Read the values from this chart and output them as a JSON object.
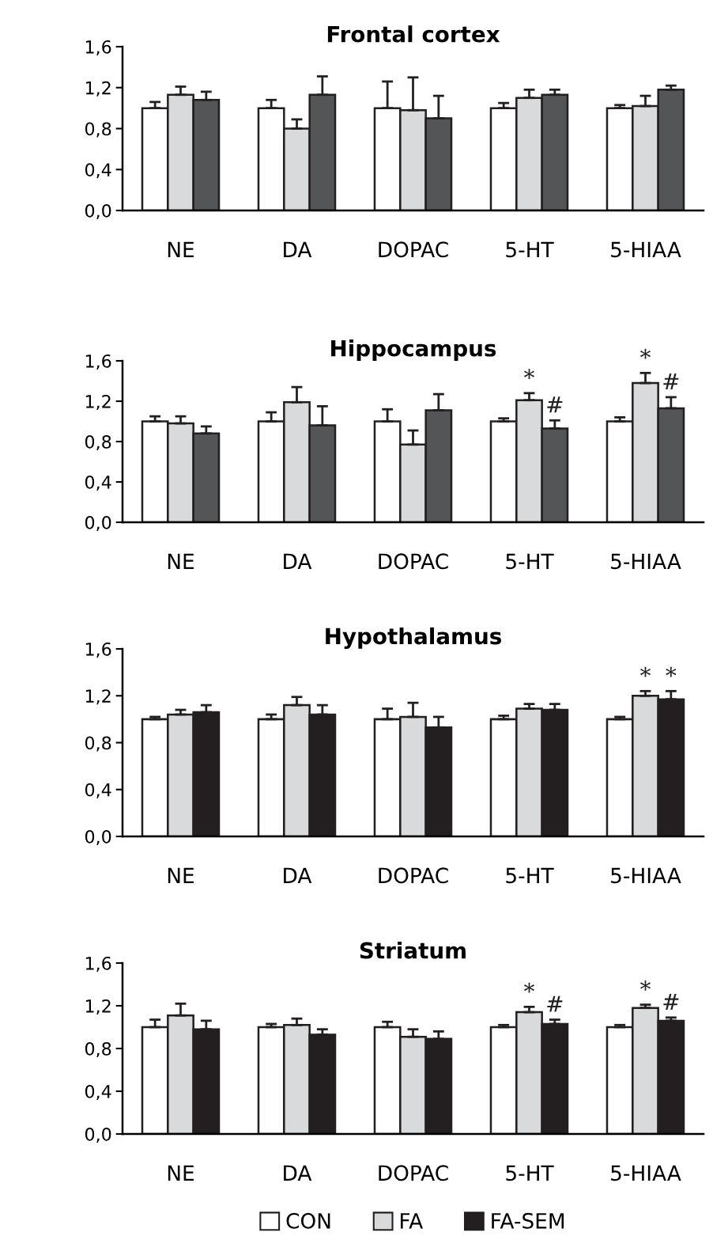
{
  "chart_data": [
    {
      "type": "bar",
      "title": "Frontal cortex",
      "categories": [
        "NE",
        "DA",
        "DOPAC",
        "5-HT",
        "5-HIAA"
      ],
      "ylim": [
        0,
        1.6
      ],
      "yticks": [
        {
          "value": 0,
          "label": "0,0"
        },
        {
          "value": 0.4,
          "label": "0,4"
        },
        {
          "value": 0.8,
          "label": "0,8"
        },
        {
          "value": 1.2,
          "label": "1,2"
        },
        {
          "value": 1.6,
          "label": "1,6"
        }
      ],
      "grid": false,
      "series": [
        {
          "color": "#ffffff",
          "values": [
            1.0,
            1.0,
            1.0,
            1.0,
            1.0
          ],
          "errors": [
            0.06,
            0.08,
            0.26,
            0.05,
            0.03
          ]
        },
        {
          "color": "#d9dadc",
          "values": [
            1.13,
            0.8,
            0.98,
            1.1,
            1.02
          ],
          "errors": [
            0.08,
            0.09,
            0.32,
            0.08,
            0.1
          ]
        },
        {
          "color": "#545556",
          "values": [
            1.08,
            1.13,
            0.9,
            1.13,
            1.18
          ],
          "errors": [
            0.08,
            0.18,
            0.22,
            0.05,
            0.04
          ]
        }
      ]
    },
    {
      "type": "bar",
      "title": "Hippocampus",
      "categories": [
        "NE",
        "DA",
        "DOPAC",
        "5-HT",
        "5-HIAA"
      ],
      "ylim": [
        0,
        1.6
      ],
      "yticks": [
        {
          "value": 0,
          "label": "0,0"
        },
        {
          "value": 0.4,
          "label": "0,4"
        },
        {
          "value": 0.8,
          "label": "0,8"
        },
        {
          "value": 1.2,
          "label": "1,2"
        },
        {
          "value": 1.6,
          "label": "1,6"
        }
      ],
      "grid": false,
      "series": [
        {
          "color": "#ffffff",
          "values": [
            1.0,
            1.0,
            1.0,
            1.0,
            1.0
          ],
          "errors": [
            0.05,
            0.09,
            0.12,
            0.03,
            0.04
          ]
        },
        {
          "color": "#d9dadc",
          "values": [
            0.98,
            1.19,
            0.77,
            1.21,
            1.38
          ],
          "errors": [
            0.07,
            0.15,
            0.14,
            0.07,
            0.1
          ]
        },
        {
          "color": "#545556",
          "values": [
            0.88,
            0.96,
            1.11,
            0.93,
            1.13
          ],
          "errors": [
            0.07,
            0.19,
            0.16,
            0.08,
            0.11
          ]
        }
      ],
      "annotations": [
        {
          "text": "*",
          "x": "5-HT",
          "y": 1.28
        },
        {
          "text": "#",
          "y": 1.01
        },
        {
          "text": "*",
          "x": "5-HIAA",
          "y": 1.48
        },
        {
          "text": "#",
          "y": 1.24
        }
      ]
    },
    {
      "type": "bar",
      "title": "Hypothalamus",
      "categories": [
        "NE",
        "DA",
        "DOPAC",
        "5-HT",
        "5-HIAA"
      ],
      "ylim": [
        0,
        1.6
      ],
      "yticks": [
        {
          "value": 0,
          "label": "0,0"
        },
        {
          "value": 0.4,
          "label": "0,4"
        },
        {
          "value": 0.8,
          "label": "0,8"
        },
        {
          "value": 1.2,
          "label": "1,2"
        },
        {
          "value": 1.6,
          "label": "1,6"
        }
      ],
      "grid": false,
      "series": [
        {
          "color": "#ffffff",
          "values": [
            1.0,
            1.0,
            1.0,
            1.0,
            1.0
          ],
          "errors": [
            0.02,
            0.04,
            0.09,
            0.03,
            0.02
          ]
        },
        {
          "color": "#d9dadc",
          "values": [
            1.04,
            1.12,
            1.02,
            1.09,
            1.2
          ],
          "errors": [
            0.04,
            0.07,
            0.12,
            0.04,
            0.04
          ]
        },
        {
          "color": "#231f20",
          "values": [
            1.06,
            1.04,
            0.93,
            1.08,
            1.17
          ],
          "errors": [
            0.06,
            0.08,
            0.09,
            0.05,
            0.07
          ]
        }
      ],
      "annotations": [
        {
          "text": "*",
          "x": "5-HIAA",
          "y": 1.24
        },
        {
          "text": "*",
          "x": "5-HIAA",
          "y": 1.24
        }
      ]
    },
    {
      "type": "bar",
      "title": "Striatum",
      "categories": [
        "NE",
        "DA",
        "DOPAC",
        "5-HT",
        "5-HIAA"
      ],
      "ylim": [
        0,
        1.6
      ],
      "yticks": [
        {
          "value": 0,
          "label": "0,0"
        },
        {
          "value": 0.4,
          "label": "0,4"
        },
        {
          "value": 0.8,
          "label": "0,8"
        },
        {
          "value": 1.2,
          "label": "1,2"
        },
        {
          "value": 1.6,
          "label": "1,6"
        }
      ],
      "grid": false,
      "legend": "bottom",
      "series": [
        {
          "name": "CON",
          "color": "#ffffff",
          "values": [
            1.0,
            1.0,
            1.0,
            1.0,
            1.0
          ],
          "errors": [
            0.07,
            0.03,
            0.05,
            0.02,
            0.02
          ]
        },
        {
          "name": "FA",
          "color": "#d9dadc",
          "values": [
            1.11,
            1.02,
            0.91,
            1.14,
            1.18
          ],
          "errors": [
            0.11,
            0.06,
            0.07,
            0.05,
            0.03
          ]
        },
        {
          "name": "FA-SEM",
          "color": "#231f20",
          "values": [
            0.98,
            0.93,
            0.89,
            1.03,
            1.06
          ],
          "errors": [
            0.08,
            0.05,
            0.07,
            0.04,
            0.03
          ]
        }
      ],
      "annotations": [
        {
          "text": "*",
          "x": "5-HT",
          "y": 1.19
        },
        {
          "text": "#",
          "y": 1.07
        },
        {
          "text": "*",
          "x": "5-HIAA",
          "y": 1.21
        },
        {
          "text": "#",
          "y": 1.09
        }
      ]
    }
  ]
}
